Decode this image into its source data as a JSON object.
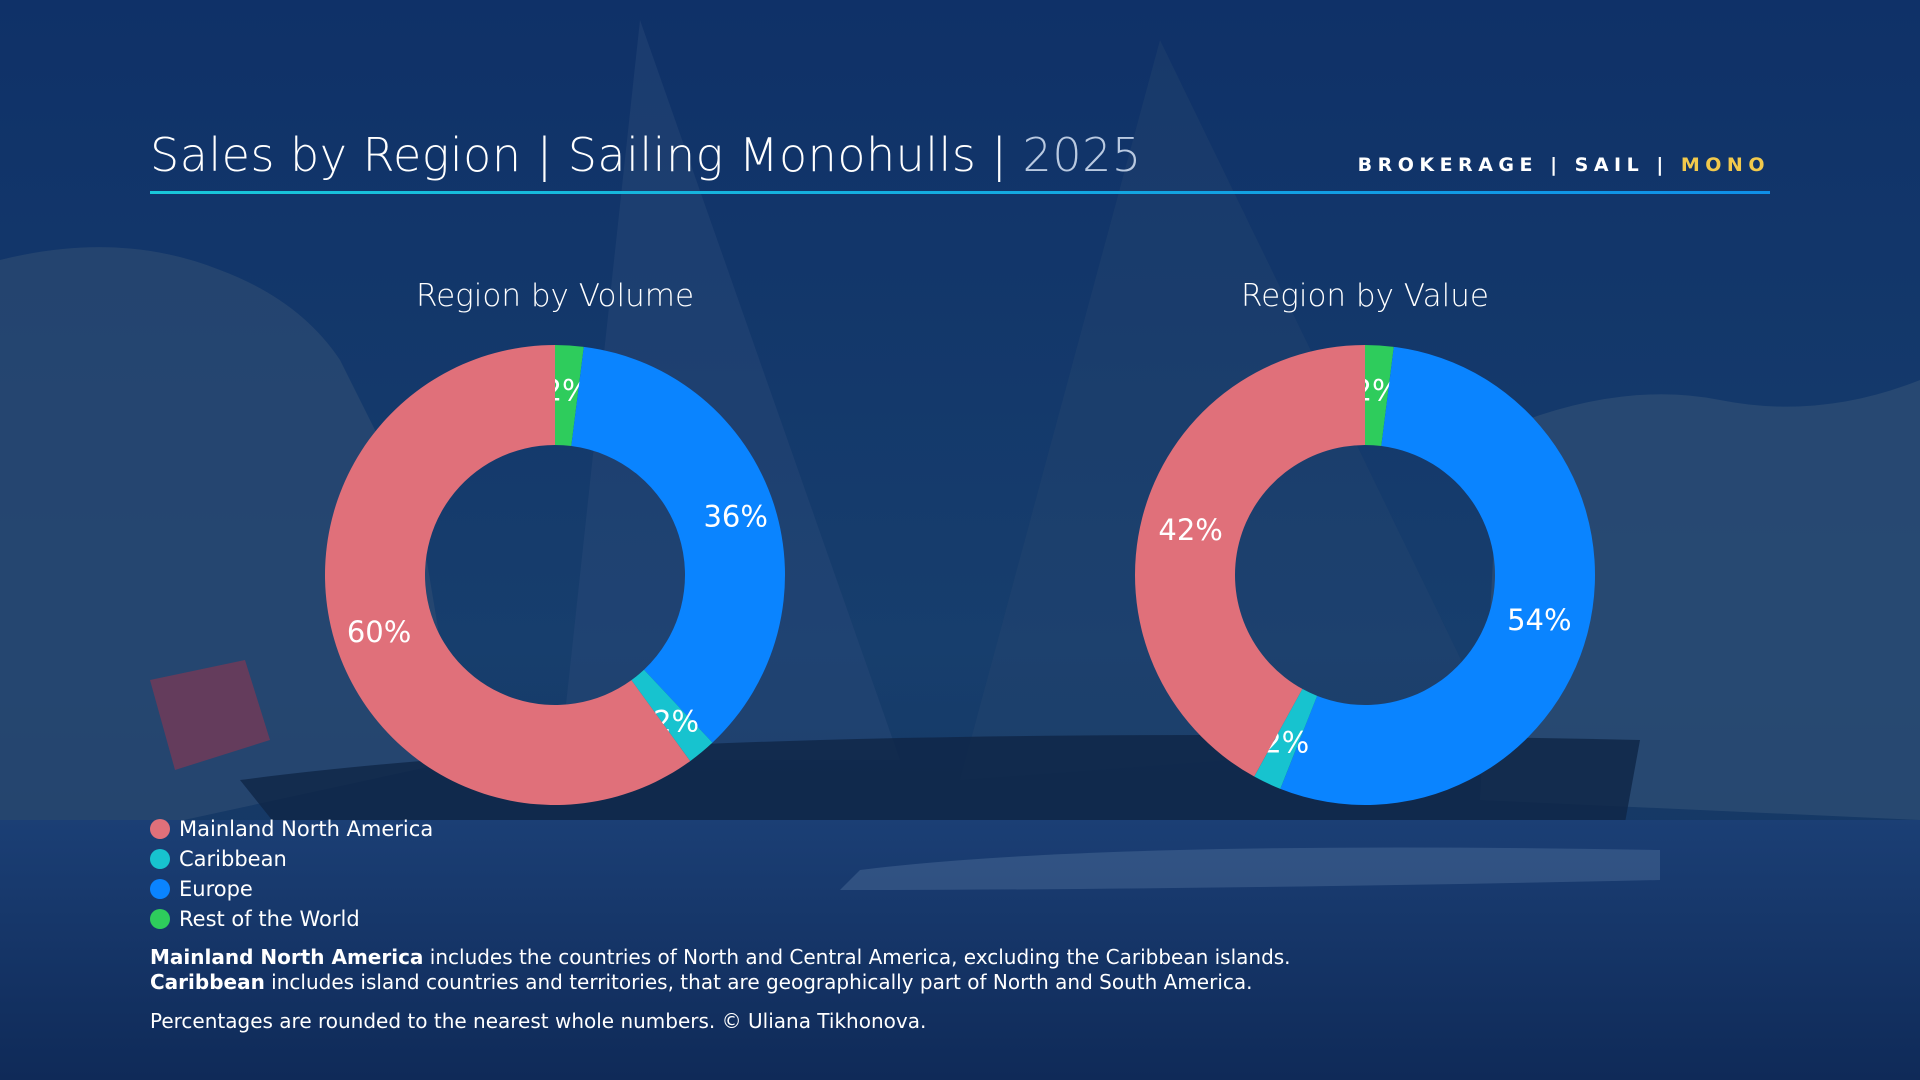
{
  "header": {
    "title": "Sales by Region | Sailing Monohulls | ",
    "year": "2025",
    "brand_prefix": "BROKERAGE | SAIL | ",
    "brand_accent": "MONO"
  },
  "colors": {
    "Mainland North America": "#e0707a",
    "Caribbean": "#17c3cf",
    "Europe": "#0a84ff",
    "Rest of the World": "#2ecc5c",
    "accent": "#f2c94c",
    "rule": "#19c7d9"
  },
  "chart_data": [
    {
      "type": "pie",
      "title": "Region by Volume",
      "categories": [
        "Rest of the World",
        "Europe",
        "Caribbean",
        "Mainland North America"
      ],
      "values": [
        2,
        36,
        2,
        60
      ],
      "labels": [
        "2%",
        "36%",
        "2%",
        "60%"
      ],
      "legend": "bottom-left"
    },
    {
      "type": "pie",
      "title": "Region by Value",
      "categories": [
        "Rest of the World",
        "Europe",
        "Caribbean",
        "Mainland North America"
      ],
      "values": [
        2,
        54,
        2,
        42
      ],
      "labels": [
        "2%",
        "54%",
        "2%",
        "42%"
      ],
      "legend": "bottom-left"
    }
  ],
  "legend": [
    {
      "label": "Mainland North America"
    },
    {
      "label": "Caribbean"
    },
    {
      "label": "Europe"
    },
    {
      "label": "Rest of the World"
    }
  ],
  "notes": {
    "line1_bold": "Mainland North America",
    "line1_rest": " includes the countries of North and Central America, excluding the Caribbean islands.",
    "line2_bold": "Caribbean",
    "line2_rest": " includes island countries and territories, that are geographically part of North and South America.",
    "footer": "Percentages are rounded to the nearest whole numbers. © Uliana Tikhonova."
  }
}
